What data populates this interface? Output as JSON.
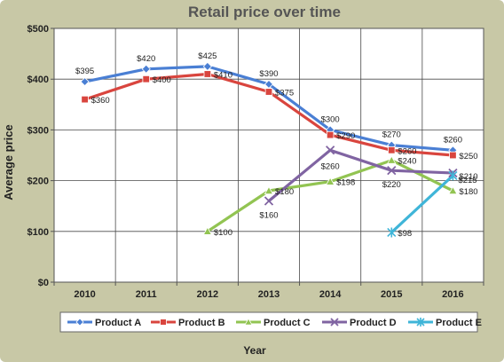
{
  "chart_data": {
    "type": "line",
    "title": "Retail price over time",
    "xlabel": "Year",
    "ylabel": "Average price",
    "categories": [
      "2010",
      "2011",
      "2012",
      "2013",
      "2014",
      "2015",
      "2016"
    ],
    "y_ticks": [
      0,
      100,
      200,
      300,
      400,
      500
    ],
    "y_tick_labels": [
      "$0",
      "$100",
      "$200",
      "$300",
      "$400",
      "$500"
    ],
    "ylim": [
      0,
      500
    ],
    "grid": true,
    "legend_position": "bottom",
    "series": [
      {
        "name": "Product A",
        "color": "#4a7fd4",
        "marker": "diamond",
        "values": [
          395,
          420,
          425,
          390,
          300,
          270,
          260
        ],
        "labels": [
          "$395",
          "$420",
          "$425",
          "$390",
          "$300",
          "$270",
          "$260"
        ]
      },
      {
        "name": "Product B",
        "color": "#d9453e",
        "marker": "square",
        "values": [
          360,
          400,
          410,
          375,
          290,
          260,
          250
        ],
        "labels": [
          "$360",
          "$400",
          "$410",
          "$375",
          "$290",
          "$260",
          "$250"
        ]
      },
      {
        "name": "Product C",
        "color": "#92c452",
        "marker": "triangle",
        "values": [
          null,
          null,
          100,
          180,
          198,
          240,
          180
        ],
        "labels": [
          null,
          null,
          "$100",
          "$180",
          "$198",
          "$240",
          "$180"
        ]
      },
      {
        "name": "Product D",
        "color": "#8064a2",
        "marker": "x",
        "values": [
          null,
          null,
          null,
          160,
          260,
          220,
          215
        ],
        "labels": [
          null,
          null,
          null,
          "$160",
          "$260",
          "$220",
          "$215"
        ]
      },
      {
        "name": "Product E",
        "color": "#3fb5d8",
        "marker": "star",
        "values": [
          null,
          null,
          null,
          null,
          null,
          98,
          210
        ],
        "labels": [
          null,
          null,
          null,
          null,
          null,
          "$98",
          "$210"
        ]
      }
    ]
  }
}
